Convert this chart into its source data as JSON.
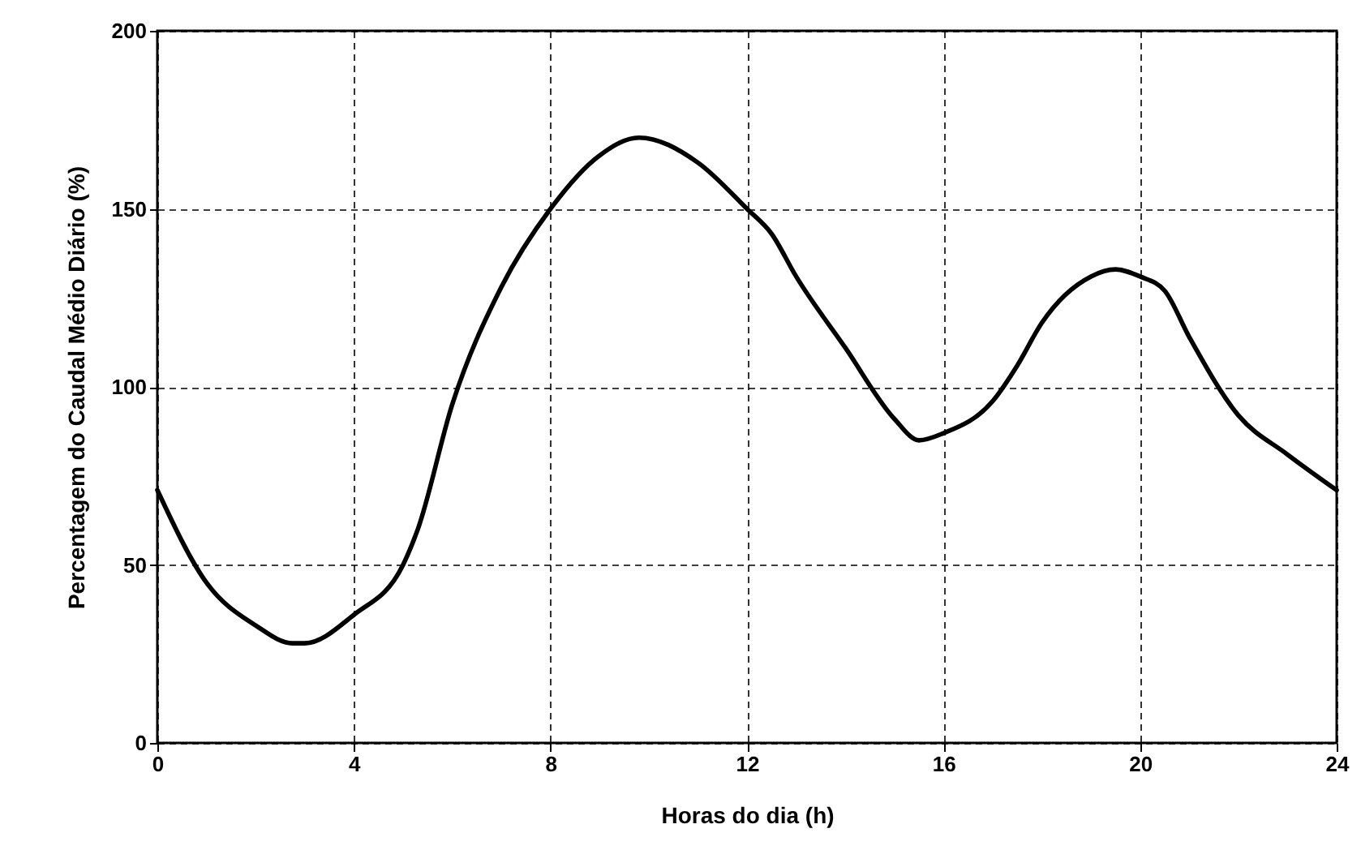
{
  "chart_data": {
    "type": "line",
    "xlabel": "Horas do dia (h)",
    "ylabel": "Percentagem do Caudal Médio Diário (%)",
    "xlim": [
      0,
      24
    ],
    "ylim": [
      0,
      200
    ],
    "xticks": [
      0,
      4,
      8,
      12,
      16,
      20,
      24
    ],
    "yticks": [
      0,
      50,
      100,
      150,
      200
    ],
    "grid": true,
    "line_style": "solid",
    "series": [
      {
        "color": "#000000",
        "x": [
          0,
          1,
          2,
          2.75,
          3,
          4,
          5,
          5.3,
          6,
          7,
          8,
          9,
          9.8,
          11,
          12,
          12.5,
          13,
          14,
          15,
          15.5,
          16,
          17,
          17.5,
          18,
          19,
          19.5,
          20,
          20.5,
          21,
          22,
          23,
          24
        ],
        "values": [
          71,
          45,
          33,
          28,
          28,
          36,
          50,
          60,
          95,
          128,
          150,
          165,
          170,
          163,
          150,
          143,
          131,
          111,
          91,
          85,
          87,
          96,
          106,
          118,
          131,
          133,
          131,
          127,
          114,
          92,
          81,
          71
        ]
      }
    ]
  }
}
